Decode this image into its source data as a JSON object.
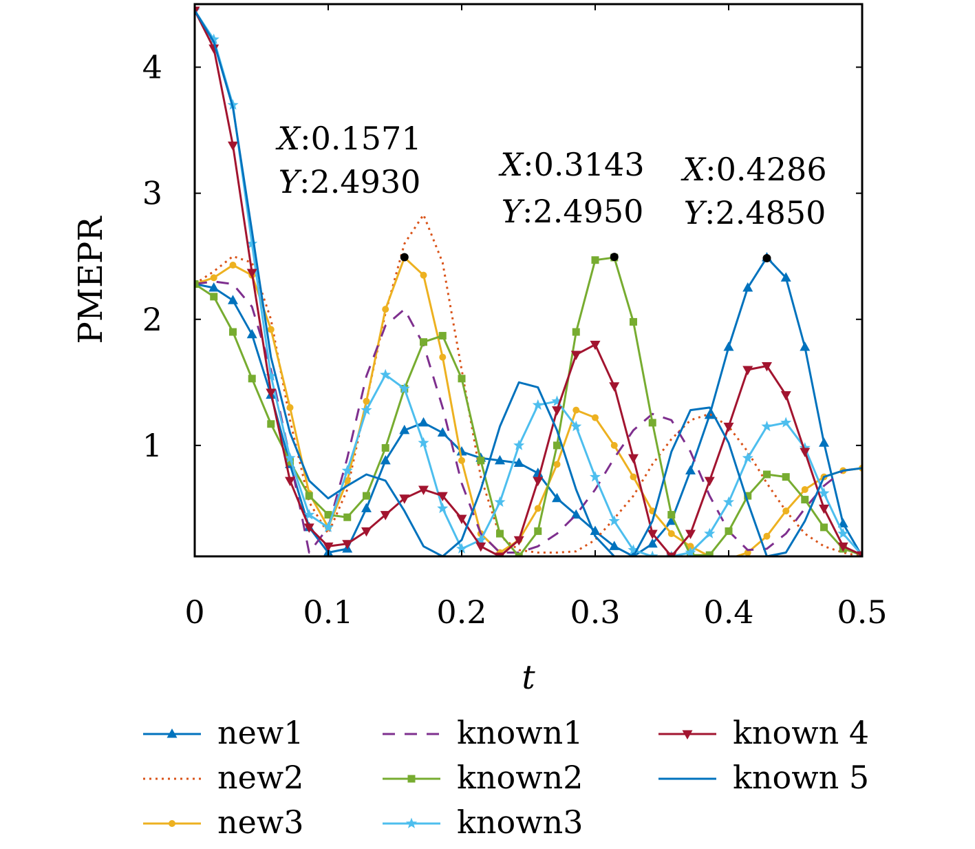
{
  "chart_data": {
    "type": "line",
    "title": "",
    "xlabel": "t",
    "ylabel": "PMEPR",
    "xlim": [
      0,
      0.5
    ],
    "ylim": [
      0.12,
      4.5
    ],
    "xticks": [
      0,
      0.1,
      0.2,
      0.3,
      0.4,
      0.5
    ],
    "xtick_labels": [
      "0",
      "0.1",
      "0.2",
      "0.3",
      "0.4",
      "0.5"
    ],
    "yticks": [
      1,
      2,
      3,
      4
    ],
    "ytick_labels": [
      "1",
      "2",
      "3",
      "4"
    ],
    "grid": false,
    "legend_position": "bottom",
    "series": [
      {
        "name": "new1",
        "color": "#0072BD",
        "dash": "",
        "marker": "triangle-up",
        "x": [
          0,
          0.0143,
          0.0286,
          0.0429,
          0.0571,
          0.0714,
          0.0857,
          0.1,
          0.1143,
          0.1286,
          0.1429,
          0.1571,
          0.1714,
          0.1857,
          0.2,
          0.2143,
          0.2286,
          0.2429,
          0.2571,
          0.2714,
          0.2857,
          0.3,
          0.3143,
          0.3286,
          0.3429,
          0.3571,
          0.3714,
          0.3857,
          0.4,
          0.4143,
          0.4286,
          0.4429,
          0.4571,
          0.4714,
          0.4857,
          0.5
        ],
        "y": [
          2.28,
          2.25,
          2.15,
          1.88,
          1.4,
          0.85,
          0.35,
          0.15,
          0.18,
          0.5,
          0.88,
          1.12,
          1.18,
          1.1,
          0.95,
          0.9,
          0.88,
          0.86,
          0.78,
          0.58,
          0.45,
          0.32,
          0.2,
          0.12,
          0.22,
          0.4,
          0.8,
          1.24,
          1.78,
          2.25,
          2.49,
          2.33,
          1.78,
          1.02,
          0.38,
          0.12
        ]
      },
      {
        "name": "new2",
        "color": "#D95319",
        "dash": "3 6",
        "marker": "none",
        "x": [
          0,
          0.0143,
          0.0286,
          0.0429,
          0.0571,
          0.0714,
          0.0857,
          0.1,
          0.1143,
          0.1286,
          0.1429,
          0.1571,
          0.1714,
          0.1857,
          0.2,
          0.2143,
          0.2286,
          0.2429,
          0.2571,
          0.2714,
          0.2857,
          0.3,
          0.3143,
          0.3286,
          0.3429,
          0.3571,
          0.3714,
          0.3857,
          0.4,
          0.4143,
          0.4286,
          0.4429,
          0.4571,
          0.4714,
          0.4857,
          0.5
        ],
        "y": [
          2.28,
          2.38,
          2.5,
          2.45,
          2.0,
          1.2,
          0.55,
          0.3,
          0.65,
          1.35,
          2.05,
          2.6,
          2.83,
          2.45,
          1.6,
          0.75,
          0.28,
          0.17,
          0.15,
          0.15,
          0.16,
          0.25,
          0.42,
          0.6,
          0.85,
          1.05,
          1.2,
          1.25,
          1.15,
          0.95,
          0.7,
          0.48,
          0.3,
          0.2,
          0.15,
          0.12
        ]
      },
      {
        "name": "new3",
        "color": "#EDB120",
        "dash": "",
        "marker": "circle",
        "x": [
          0,
          0.0143,
          0.0286,
          0.0429,
          0.0571,
          0.0714,
          0.0857,
          0.1,
          0.1143,
          0.1286,
          0.1429,
          0.1571,
          0.1714,
          0.1857,
          0.2,
          0.2143,
          0.2286,
          0.2429,
          0.2571,
          0.2714,
          0.2857,
          0.3,
          0.3143,
          0.3286,
          0.3429,
          0.3571,
          0.3714,
          0.3857,
          0.4,
          0.4143,
          0.4286,
          0.4429,
          0.4571,
          0.4714,
          0.4857,
          0.5
        ],
        "y": [
          2.28,
          2.33,
          2.43,
          2.35,
          1.92,
          1.3,
          0.62,
          0.35,
          0.72,
          1.35,
          2.08,
          2.49,
          2.35,
          1.7,
          0.88,
          0.3,
          0.15,
          0.25,
          0.5,
          0.85,
          1.28,
          1.22,
          1.0,
          0.75,
          0.48,
          0.3,
          0.2,
          0.12,
          0.1,
          0.15,
          0.28,
          0.48,
          0.65,
          0.75,
          0.8,
          0.82
        ]
      },
      {
        "name": "known1",
        "color": "#7E2F8E",
        "dash": "18 14",
        "marker": "none",
        "x": [
          0,
          0.0143,
          0.0286,
          0.0429,
          0.0571,
          0.0714,
          0.0857,
          0.1,
          0.1143,
          0.1286,
          0.1429,
          0.1571,
          0.1714,
          0.1857,
          0.2,
          0.2143,
          0.2286,
          0.2429,
          0.2571,
          0.2714,
          0.2857,
          0.3,
          0.3143,
          0.3286,
          0.3429,
          0.3571,
          0.3714,
          0.3857,
          0.4,
          0.4143,
          0.4286,
          0.4429,
          0.4571,
          0.4714,
          0.4857,
          0.5
        ],
        "y": [
          2.28,
          2.3,
          2.28,
          2.1,
          1.6,
          0.9,
          0.15,
          0.35,
          0.9,
          1.55,
          1.95,
          2.08,
          1.8,
          1.3,
          0.7,
          0.3,
          0.15,
          0.15,
          0.2,
          0.3,
          0.45,
          0.65,
          0.9,
          1.12,
          1.25,
          1.2,
          0.95,
          0.6,
          0.32,
          0.17,
          0.18,
          0.3,
          0.5,
          0.68,
          0.8,
          0.82
        ]
      },
      {
        "name": "known2",
        "color": "#77AC30",
        "dash": "",
        "marker": "square",
        "x": [
          0,
          0.0143,
          0.0286,
          0.0429,
          0.0571,
          0.0714,
          0.0857,
          0.1,
          0.1143,
          0.1286,
          0.1429,
          0.1571,
          0.1714,
          0.1857,
          0.2,
          0.2143,
          0.2286,
          0.2429,
          0.2571,
          0.2714,
          0.2857,
          0.3,
          0.3143,
          0.3286,
          0.3429,
          0.3571,
          0.3714,
          0.3857,
          0.4,
          0.4143,
          0.4286,
          0.4429,
          0.4571,
          0.4714,
          0.4857,
          0.5
        ],
        "y": [
          2.28,
          2.18,
          1.9,
          1.53,
          1.17,
          0.87,
          0.6,
          0.45,
          0.43,
          0.6,
          0.98,
          1.45,
          1.82,
          1.87,
          1.53,
          0.88,
          0.3,
          0.12,
          0.32,
          1.0,
          1.9,
          2.47,
          2.49,
          1.98,
          1.18,
          0.45,
          0.13,
          0.13,
          0.32,
          0.6,
          0.77,
          0.75,
          0.57,
          0.35,
          0.18,
          0.13
        ]
      },
      {
        "name": "known3",
        "color": "#4DBEEE",
        "dash": "",
        "marker": "star",
        "x": [
          0,
          0.0143,
          0.0286,
          0.0429,
          0.0571,
          0.0714,
          0.0857,
          0.1,
          0.1143,
          0.1286,
          0.1429,
          0.1571,
          0.1714,
          0.1857,
          0.2,
          0.2143,
          0.2286,
          0.2429,
          0.2571,
          0.2714,
          0.2857,
          0.3,
          0.3143,
          0.3286,
          0.3429,
          0.3571,
          0.3714,
          0.3857,
          0.4,
          0.4143,
          0.4286,
          0.4429,
          0.4571,
          0.4714,
          0.4857,
          0.5
        ],
        "y": [
          4.45,
          4.22,
          3.7,
          2.6,
          1.55,
          0.9,
          0.45,
          0.35,
          0.8,
          1.28,
          1.56,
          1.45,
          1.02,
          0.5,
          0.18,
          0.25,
          0.55,
          1.0,
          1.32,
          1.35,
          1.15,
          0.75,
          0.4,
          0.17,
          0.12,
          0.12,
          0.15,
          0.3,
          0.55,
          0.9,
          1.15,
          1.18,
          0.98,
          0.62,
          0.3,
          0.13
        ]
      },
      {
        "name": "known 4",
        "color": "#A2142F",
        "dash": "",
        "marker": "triangle-down",
        "x": [
          0,
          0.0143,
          0.0286,
          0.0429,
          0.0571,
          0.0714,
          0.0857,
          0.1,
          0.1143,
          0.1286,
          0.1429,
          0.1571,
          0.1714,
          0.1857,
          0.2,
          0.2143,
          0.2286,
          0.2429,
          0.2571,
          0.2714,
          0.2857,
          0.3,
          0.3143,
          0.3286,
          0.3429,
          0.3571,
          0.3714,
          0.3857,
          0.4,
          0.4143,
          0.4286,
          0.4429,
          0.4571,
          0.4714,
          0.4857,
          0.5
        ],
        "y": [
          4.45,
          4.15,
          3.38,
          2.37,
          1.42,
          0.72,
          0.35,
          0.2,
          0.22,
          0.32,
          0.45,
          0.58,
          0.65,
          0.6,
          0.42,
          0.2,
          0.12,
          0.25,
          0.72,
          1.28,
          1.72,
          1.8,
          1.47,
          0.9,
          0.3,
          0.12,
          0.3,
          0.72,
          1.15,
          1.6,
          1.63,
          1.4,
          0.95,
          0.5,
          0.2,
          0.13
        ]
      },
      {
        "name": "known 5",
        "color": "#0072BD",
        "dash": "",
        "marker": "none",
        "x": [
          0,
          0.0143,
          0.0286,
          0.0429,
          0.0571,
          0.0714,
          0.0857,
          0.1,
          0.1143,
          0.1286,
          0.1429,
          0.1571,
          0.1714,
          0.1857,
          0.2,
          0.2143,
          0.2286,
          0.2429,
          0.2571,
          0.2714,
          0.2857,
          0.3,
          0.3143,
          0.3286,
          0.3429,
          0.3571,
          0.3714,
          0.3857,
          0.4,
          0.4143,
          0.4286,
          0.4429,
          0.4571,
          0.4714,
          0.4857,
          0.5
        ],
        "y": [
          4.45,
          4.2,
          3.68,
          2.7,
          1.7,
          1.1,
          0.72,
          0.58,
          0.68,
          0.77,
          0.72,
          0.48,
          0.2,
          0.12,
          0.25,
          0.65,
          1.15,
          1.5,
          1.46,
          1.12,
          0.65,
          0.28,
          0.12,
          0.12,
          0.4,
          0.95,
          1.28,
          1.3,
          1.02,
          0.55,
          0.12,
          0.15,
          0.4,
          0.75,
          0.8,
          0.82
        ]
      }
    ],
    "annotations": [
      {
        "x": 0.1571,
        "y": 2.493,
        "line1": "X:0.1571",
        "line2": "Y:2.4930"
      },
      {
        "x": 0.3143,
        "y": 2.495,
        "line1": "X:0.3143",
        "line2": "Y:2.4950"
      },
      {
        "x": 0.4286,
        "y": 2.485,
        "line1": "X:0.4286",
        "line2": "Y:2.4850"
      }
    ]
  }
}
